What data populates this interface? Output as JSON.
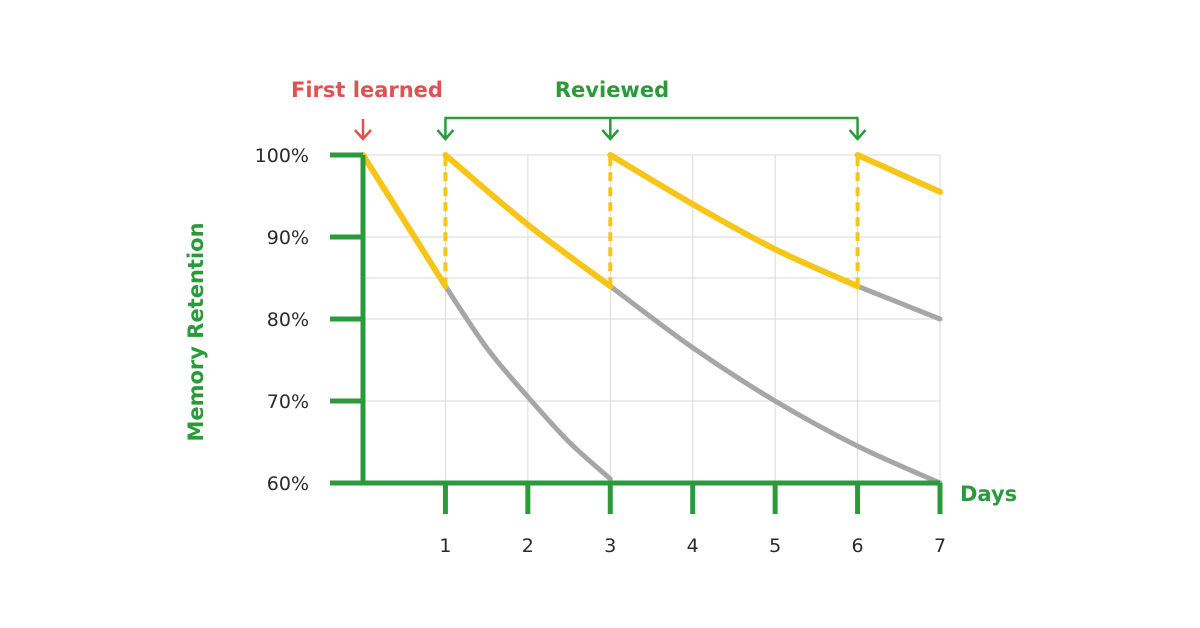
{
  "chart_data": {
    "type": "line",
    "title": "",
    "xlabel": "Days",
    "ylabel": "Memory Retention",
    "xlim": [
      0,
      7
    ],
    "ylim": [
      60,
      100
    ],
    "x_ticks": [
      1,
      2,
      3,
      4,
      5,
      6,
      7
    ],
    "y_ticks": [
      60,
      70,
      80,
      90,
      100
    ],
    "y_tick_labels": [
      "60%",
      "70%",
      "80%",
      "90%",
      "100%"
    ],
    "grid": true,
    "annotations": {
      "first_learned": {
        "text": "First learned",
        "x": 0
      },
      "reviewed": {
        "text": "Reviewed",
        "x": [
          1,
          3,
          6
        ]
      }
    },
    "series": [
      {
        "style": "retention-with-review",
        "color": "#F5C518",
        "points": [
          [
            0,
            100
          ],
          [
            1,
            84
          ],
          [
            1,
            100
          ],
          [
            2,
            91.5
          ],
          [
            3,
            84
          ],
          [
            3,
            100
          ],
          [
            4,
            94
          ],
          [
            5,
            88.5
          ],
          [
            6,
            84
          ],
          [
            6,
            100
          ],
          [
            7,
            95.5
          ]
        ]
      },
      {
        "style": "forgetting-curve",
        "color": "#A6A6A6",
        "points": [
          [
            1,
            84
          ],
          [
            1.5,
            76.5
          ],
          [
            2,
            70.5
          ],
          [
            2.5,
            65
          ],
          [
            3,
            60.5
          ]
        ]
      },
      {
        "style": "forgetting-curve",
        "color": "#A6A6A6",
        "points": [
          [
            3,
            84
          ],
          [
            4,
            76.5
          ],
          [
            5,
            70
          ],
          [
            6,
            64.5
          ],
          [
            7,
            60
          ]
        ]
      },
      {
        "style": "forgetting-curve",
        "color": "#A6A6A6",
        "points": [
          [
            6,
            84
          ],
          [
            6.5,
            82
          ],
          [
            7,
            80
          ]
        ]
      }
    ],
    "colors": {
      "axis": "#2A9A3A",
      "first_learned": "#E05252",
      "reviewed": "#2A9A3A",
      "grid": "#D9D9D9"
    }
  }
}
